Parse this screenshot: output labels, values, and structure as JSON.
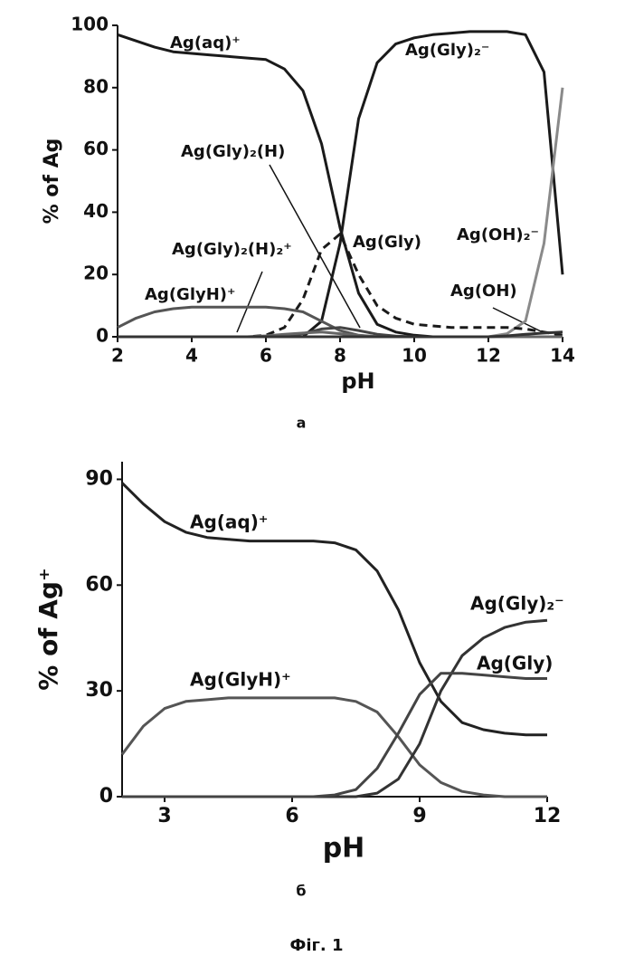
{
  "chart_data": [
    {
      "type": "line",
      "panel_label": "а",
      "x_label": "pH",
      "y_label": "% of Ag",
      "xlim": [
        2,
        14
      ],
      "xticks": [
        2,
        4,
        6,
        8,
        10,
        12,
        14
      ],
      "ylim": [
        0,
        100
      ],
      "yticks": [
        0,
        20,
        40,
        60,
        80,
        100
      ],
      "x": [
        2,
        2.5,
        3,
        3.5,
        4,
        4.5,
        5,
        5.5,
        6,
        6.5,
        7,
        7.5,
        8,
        8.5,
        9,
        9.5,
        10,
        10.5,
        11,
        11.5,
        12,
        12.5,
        13,
        13.5,
        14
      ],
      "series": [
        {
          "name": "Ag(aq)⁺",
          "color": "#1a1a1a",
          "values": [
            97,
            95,
            93,
            91.5,
            91,
            90.5,
            90,
            89.5,
            89,
            86,
            79,
            62,
            35,
            14,
            4,
            1.5,
            0.5,
            0,
            0,
            0,
            0,
            0,
            0,
            0,
            0
          ]
        },
        {
          "name": "Ag(Gly)₂⁻",
          "color": "#1a1a1a",
          "values": [
            0,
            0,
            0,
            0,
            0,
            0,
            0,
            0,
            0,
            0,
            0,
            5,
            30,
            70,
            88,
            94,
            96,
            97,
            97.5,
            98,
            98,
            98,
            97,
            85,
            20
          ]
        },
        {
          "name": "Ag(OH)₂⁻",
          "color": "#8a8a8a",
          "values": [
            0,
            0,
            0,
            0,
            0,
            0,
            0,
            0,
            0,
            0,
            0,
            0,
            0,
            0,
            0,
            0,
            0,
            0,
            0,
            0,
            0,
            1,
            5,
            30,
            80
          ]
        },
        {
          "name": "Ag(Gly)",
          "color": "#1a1a1a",
          "dash": true,
          "values": [
            0,
            0,
            0,
            0,
            0,
            0,
            0,
            0,
            0.5,
            3,
            12,
            28,
            33,
            20,
            10,
            6,
            4,
            3.5,
            3,
            3,
            3,
            3,
            2.5,
            1.5,
            0.5
          ]
        },
        {
          "name": "Ag(GlyH)⁺",
          "color": "#555555",
          "values": [
            3,
            6,
            8,
            9,
            9.5,
            9.5,
            9.5,
            9.5,
            9.5,
            9,
            8,
            5,
            2,
            0.5,
            0,
            0,
            0,
            0,
            0,
            0,
            0,
            0,
            0,
            0,
            0
          ]
        },
        {
          "name": "Ag(Gly)₂(H)",
          "color": "#444444",
          "values": [
            0,
            0,
            0,
            0,
            0,
            0,
            0,
            0,
            0,
            0.3,
            1,
            2.5,
            3,
            2,
            0.8,
            0.2,
            0,
            0,
            0,
            0,
            0,
            0,
            0,
            0,
            0
          ]
        },
        {
          "name": "Ag(Gly)₂(H)₂⁺",
          "color": "#666666",
          "values": [
            0,
            0,
            0,
            0,
            0,
            0,
            0,
            0,
            0.3,
            0.8,
            1.2,
            1.5,
            1,
            0.4,
            0.1,
            0,
            0,
            0,
            0,
            0,
            0,
            0,
            0,
            0,
            0
          ]
        },
        {
          "name": "Ag(OH)",
          "color": "#333333",
          "values": [
            0,
            0,
            0,
            0,
            0,
            0,
            0,
            0,
            0,
            0,
            0,
            0,
            0,
            0,
            0,
            0,
            0,
            0,
            0,
            0,
            0,
            0.3,
            0.8,
            1.2,
            1.5
          ]
        }
      ]
    },
    {
      "type": "line",
      "panel_label": "б",
      "x_label": "pH",
      "y_label": "% of Ag⁺",
      "xlim": [
        2,
        12
      ],
      "xticks": [
        3,
        6,
        9,
        12
      ],
      "ylim": [
        0,
        95
      ],
      "yticks": [
        0,
        30,
        60,
        90
      ],
      "x": [
        2,
        2.5,
        3,
        3.5,
        4,
        4.5,
        5,
        5.5,
        6,
        6.5,
        7,
        7.5,
        8,
        8.5,
        9,
        9.5,
        10,
        10.5,
        11,
        11.5,
        12
      ],
      "series": [
        {
          "name": "Ag(aq)⁺",
          "color": "#222222",
          "values": [
            89,
            83,
            78,
            75,
            73.5,
            73,
            72.5,
            72.5,
            72.5,
            72.5,
            72,
            70,
            64,
            53,
            38,
            27,
            21,
            19,
            18,
            17.5,
            17.5
          ]
        },
        {
          "name": "Ag(GlyH)⁺",
          "color": "#555555",
          "values": [
            12,
            20,
            25,
            27,
            27.5,
            28,
            28,
            28,
            28,
            28,
            28,
            27,
            24,
            17,
            9,
            4,
            1.5,
            0.5,
            0,
            0,
            0
          ]
        },
        {
          "name": "Ag(Gly)₂⁻",
          "color": "#333333",
          "values": [
            0,
            0,
            0,
            0,
            0,
            0,
            0,
            0,
            0,
            0,
            0,
            0,
            1,
            5,
            15,
            30,
            40,
            45,
            48,
            49.5,
            50
          ]
        },
        {
          "name": "Ag(Gly)",
          "color": "#444444",
          "values": [
            0,
            0,
            0,
            0,
            0,
            0,
            0,
            0,
            0,
            0,
            0.5,
            2,
            8,
            18,
            29,
            35,
            35,
            34.5,
            34,
            33.5,
            33.5
          ]
        }
      ]
    }
  ],
  "figure_caption": "Фіг. 1"
}
